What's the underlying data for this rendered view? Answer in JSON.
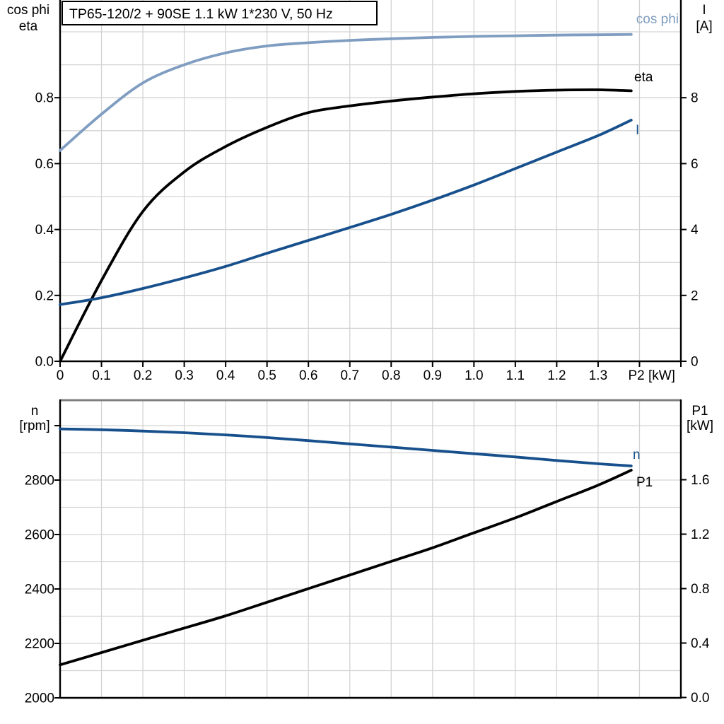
{
  "colors": {
    "light_blue": "#7f9dc1",
    "dark_blue": "#17508c",
    "black": "#000000",
    "grid": "#d3d3d3",
    "frame_gray": "#7f7f7f",
    "background": "#ffffff"
  },
  "chart_data": [
    {
      "type": "line",
      "name": "electrical-curves-chart",
      "title": "TP65-120/2 + 90SE   1.1 kW   1*230 V, 50 Hz",
      "x_axis": {
        "title": "P2 [kW]",
        "min": 0,
        "max": 1.5,
        "grid_step": 0.1,
        "ticks": [
          {
            "v": 0,
            "label": "0"
          },
          {
            "v": 0.1,
            "label": "0.1"
          },
          {
            "v": 0.2,
            "label": "0.2"
          },
          {
            "v": 0.3,
            "label": "0.3"
          },
          {
            "v": 0.4,
            "label": "0.4"
          },
          {
            "v": 0.5,
            "label": "0.5"
          },
          {
            "v": 0.6,
            "label": "0.6"
          },
          {
            "v": 0.7,
            "label": "0.7"
          },
          {
            "v": 0.8,
            "label": "0.8"
          },
          {
            "v": 0.9,
            "label": "0.9"
          },
          {
            "v": 1.0,
            "label": "1.0"
          },
          {
            "v": 1.1,
            "label": "1.1"
          },
          {
            "v": 1.2,
            "label": "1.2"
          },
          {
            "v": 1.3,
            "label": "1.3"
          },
          {
            "v": 1.4,
            "label": "P2 [kW]"
          }
        ]
      },
      "left_axis": {
        "title_lines": [
          "cos phi",
          "eta"
        ],
        "min": 0,
        "max": 1.0,
        "grid_step": 0.1,
        "ticks": [
          {
            "v": 0.0,
            "label": "0.0"
          },
          {
            "v": 0.2,
            "label": "0.2"
          },
          {
            "v": 0.4,
            "label": "0.4"
          },
          {
            "v": 0.6,
            "label": "0.6"
          },
          {
            "v": 0.8,
            "label": "0.8"
          }
        ]
      },
      "right_axis": {
        "title_lines": [
          "I",
          "[A]"
        ],
        "min": 0,
        "max": 10,
        "ticks": [
          {
            "v": 0,
            "label": "0"
          },
          {
            "v": 2,
            "label": "2"
          },
          {
            "v": 4,
            "label": "4"
          },
          {
            "v": 6,
            "label": "6"
          },
          {
            "v": 8,
            "label": "8"
          }
        ]
      },
      "series": [
        {
          "name": "cos phi",
          "label": "cos phi",
          "axis": "left",
          "color": "#7f9dc1",
          "x": [
            0,
            0.1,
            0.2,
            0.3,
            0.4,
            0.5,
            0.6,
            0.7,
            0.8,
            0.9,
            1.0,
            1.1,
            1.2,
            1.3,
            1.38
          ],
          "y": [
            0.64,
            0.75,
            0.845,
            0.9,
            0.936,
            0.957,
            0.967,
            0.974,
            0.979,
            0.983,
            0.986,
            0.988,
            0.99,
            0.991,
            0.992
          ]
        },
        {
          "name": "eta",
          "label": "eta",
          "axis": "left",
          "color": "#000000",
          "x": [
            0,
            0.1,
            0.2,
            0.3,
            0.4,
            0.5,
            0.6,
            0.7,
            0.8,
            0.9,
            1.0,
            1.1,
            1.2,
            1.3,
            1.38
          ],
          "y": [
            0.0,
            0.245,
            0.455,
            0.575,
            0.652,
            0.71,
            0.755,
            0.775,
            0.79,
            0.802,
            0.812,
            0.819,
            0.823,
            0.824,
            0.821
          ]
        },
        {
          "name": "I",
          "label": "I",
          "axis": "right",
          "color": "#17508c",
          "x": [
            0,
            0.1,
            0.2,
            0.3,
            0.4,
            0.5,
            0.6,
            0.7,
            0.8,
            0.9,
            1.0,
            1.1,
            1.2,
            1.3,
            1.38
          ],
          "y": [
            1.72,
            1.93,
            2.21,
            2.53,
            2.88,
            3.28,
            3.67,
            4.06,
            4.46,
            4.89,
            5.35,
            5.85,
            6.35,
            6.85,
            7.32
          ]
        }
      ]
    },
    {
      "type": "line",
      "name": "speed-input-power-chart",
      "title": "",
      "x_axis": {
        "title": "",
        "min": 0,
        "max": 1.5,
        "grid_step": 0.1,
        "ticks": []
      },
      "left_axis": {
        "title_lines": [
          "n",
          "[rpm]"
        ],
        "min": 2000,
        "max": 3000,
        "grid_step": 100,
        "ticks": [
          {
            "v": 3000,
            "label": ""
          },
          {
            "v": 2800,
            "label": "2800"
          },
          {
            "v": 2600,
            "label": "2600"
          },
          {
            "v": 2400,
            "label": "2400"
          },
          {
            "v": 2200,
            "label": "2200"
          },
          {
            "v": 2000,
            "label": "2000"
          }
        ]
      },
      "right_axis": {
        "title_lines": [
          "P1",
          "[kW]"
        ],
        "min": 0,
        "max": 2.0,
        "ticks": [
          {
            "v": 1.6,
            "label": "1.6"
          },
          {
            "v": 1.2,
            "label": "1.2"
          },
          {
            "v": 0.8,
            "label": "0.8"
          },
          {
            "v": 0.4,
            "label": "0.4"
          },
          {
            "v": 0.0,
            "label": "0.0"
          }
        ]
      },
      "series": [
        {
          "name": "n",
          "label": "n",
          "axis": "left",
          "color": "#17508c",
          "x": [
            0,
            0.1,
            0.2,
            0.3,
            0.4,
            0.5,
            0.6,
            0.7,
            0.8,
            0.9,
            1.0,
            1.1,
            1.2,
            1.3,
            1.38
          ],
          "y": [
            2988,
            2985,
            2980,
            2974,
            2966,
            2956,
            2945,
            2933,
            2921,
            2909,
            2897,
            2885,
            2872,
            2860,
            2852
          ]
        },
        {
          "name": "P1",
          "label": "P1",
          "axis": "right",
          "color": "#000000",
          "x": [
            0,
            0.1,
            0.2,
            0.3,
            0.4,
            0.5,
            0.6,
            0.7,
            0.8,
            0.9,
            1.0,
            1.1,
            1.2,
            1.3,
            1.38
          ],
          "y": [
            0.24,
            0.33,
            0.42,
            0.51,
            0.6,
            0.7,
            0.8,
            0.9,
            1.0,
            1.1,
            1.21,
            1.32,
            1.44,
            1.56,
            1.67
          ]
        }
      ]
    }
  ]
}
